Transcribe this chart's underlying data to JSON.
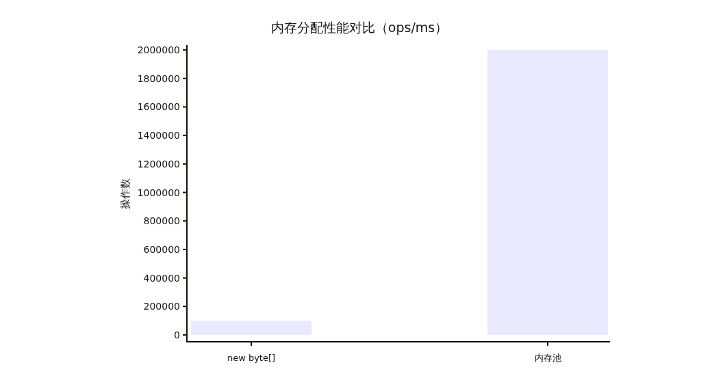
{
  "chart_data": {
    "type": "bar",
    "title": "内存分配性能对比（ops/ms）",
    "ylabel": "操作数",
    "categories": [
      "new byte[]",
      "内存池"
    ],
    "values": [
      100000,
      2000000
    ],
    "color": "#eaeaff",
    "ylim": [
      -48000,
      2034000
    ],
    "yticks": [
      0,
      200000,
      400000,
      600000,
      800000,
      1000000,
      1200000,
      1400000,
      1600000,
      1800000,
      2000000
    ],
    "grid": false
  }
}
